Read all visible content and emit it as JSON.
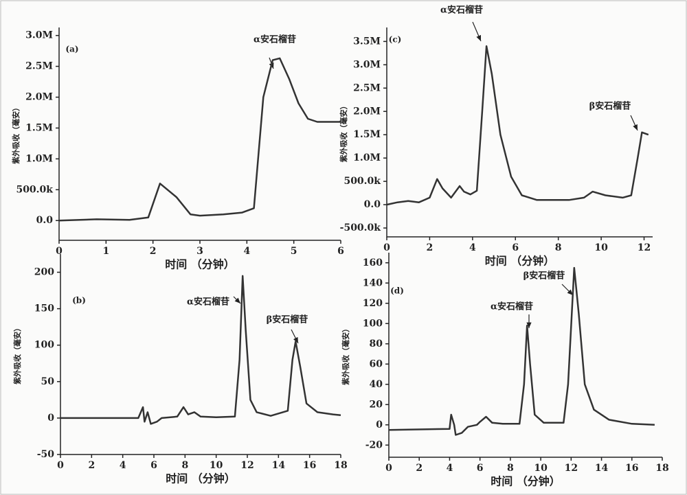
{
  "chart_data": [
    {
      "type": "line",
      "panel_label": "(a)",
      "x_label": "时间 （分钟）",
      "y_label": "紫外吸收（毫安）",
      "xlim": [
        0,
        6
      ],
      "xticks": [
        0,
        1,
        2,
        3,
        4,
        5,
        6
      ],
      "ylim": [
        -320000,
        3130000
      ],
      "yticks": [
        {
          "value": 0,
          "label": "0.0"
        },
        {
          "value": 500000,
          "label": "500.0k"
        },
        {
          "value": 1000000,
          "label": "1.0M"
        },
        {
          "value": 1500000,
          "label": "1.5M"
        },
        {
          "value": 2000000,
          "label": "2.0M"
        },
        {
          "value": 2500000,
          "label": "2.5M"
        },
        {
          "value": 3000000,
          "label": "3.0M"
        }
      ],
      "annotations": [
        {
          "text": "α安石榴苷"
        }
      ],
      "series": [
        {
          "color": "#333333",
          "x": [
            0,
            0.8,
            1.5,
            1.9,
            2.15,
            2.5,
            2.8,
            3.0,
            3.5,
            3.9,
            4.15,
            4.35,
            4.55,
            4.7,
            4.9,
            5.1,
            5.3,
            5.5,
            6.0
          ],
          "values": [
            0,
            20000,
            10000,
            50000,
            600000,
            380000,
            100000,
            80000,
            100000,
            130000,
            200000,
            2000000,
            2600000,
            2630000,
            2300000,
            1900000,
            1650000,
            1600000,
            1600000
          ]
        }
      ]
    },
    {
      "type": "line",
      "panel_label": "(c)",
      "x_label": "时间 （分钟）",
      "y_label": "紫外吸收（毫安）",
      "xlim": [
        0,
        12.4
      ],
      "xticks": [
        0,
        2,
        4,
        6,
        8,
        10,
        12
      ],
      "ylim": [
        -690000,
        3800000
      ],
      "yticks": [
        {
          "value": -500000,
          "label": "-500.0k"
        },
        {
          "value": 0,
          "label": "0.0"
        },
        {
          "value": 500000,
          "label": "500.0k"
        },
        {
          "value": 1000000,
          "label": "1.0M"
        },
        {
          "value": 1500000,
          "label": "1.5M"
        },
        {
          "value": 2000000,
          "label": "2.0M"
        },
        {
          "value": 2500000,
          "label": "2.5M"
        },
        {
          "value": 3000000,
          "label": "3.0M"
        },
        {
          "value": 3500000,
          "label": "3.5M"
        }
      ],
      "annotations": [
        {
          "text": "α安石榴苷"
        },
        {
          "text": "β安石榴苷"
        }
      ],
      "series": [
        {
          "color": "#333333",
          "x": [
            0,
            0.5,
            1,
            1.5,
            2.0,
            2.35,
            2.6,
            3.0,
            3.4,
            3.6,
            3.9,
            4.2,
            4.45,
            4.65,
            4.9,
            5.3,
            5.8,
            6.3,
            7,
            8.5,
            9.2,
            9.6,
            10.2,
            11,
            11.4,
            11.7,
            11.9,
            12.2
          ],
          "values": [
            0,
            50000,
            80000,
            50000,
            150000,
            550000,
            350000,
            150000,
            400000,
            280000,
            220000,
            300000,
            2000000,
            3400000,
            2800000,
            1500000,
            600000,
            200000,
            100000,
            100000,
            150000,
            280000,
            200000,
            150000,
            200000,
            1000000,
            1550000,
            1500000
          ]
        }
      ]
    },
    {
      "type": "line",
      "panel_label": "(b)",
      "x_label": "时间 （分钟）",
      "y_label": "紫外吸收（毫安）",
      "xlim": [
        0,
        18
      ],
      "xticks": [
        0,
        2,
        4,
        6,
        8,
        10,
        12,
        14,
        16,
        18
      ],
      "ylim": [
        -50,
        225
      ],
      "yticks": [
        -50,
        0,
        50,
        100,
        150,
        200
      ],
      "annotations": [
        {
          "text": "α安石榴苷"
        },
        {
          "text": "β安石榴苷"
        }
      ],
      "series": [
        {
          "color": "#333333",
          "x": [
            0,
            5.0,
            5.3,
            5.4,
            5.6,
            5.8,
            6.2,
            6.5,
            7.5,
            7.9,
            8.2,
            8.6,
            9,
            10,
            11.2,
            11.5,
            11.7,
            11.9,
            12.2,
            12.6,
            13.5,
            14.6,
            14.9,
            15.1,
            15.4,
            15.8,
            16.5,
            17.5,
            18
          ],
          "values": [
            0,
            0,
            15,
            -5,
            8,
            -8,
            -5,
            0,
            2,
            15,
            5,
            8,
            2,
            1,
            2,
            80,
            195,
            120,
            25,
            8,
            3,
            10,
            80,
            105,
            70,
            20,
            8,
            5,
            4
          ]
        }
      ]
    },
    {
      "type": "line",
      "panel_label": "(d)",
      "x_label": "时间 （分钟）",
      "y_label": "紫外吸收（毫安）",
      "xlim": [
        0,
        18
      ],
      "xticks": [
        0,
        2,
        4,
        6,
        8,
        10,
        12,
        14,
        16,
        18
      ],
      "ylim": [
        -32,
        170
      ],
      "yticks": [
        -20,
        0,
        20,
        40,
        60,
        80,
        100,
        120,
        140,
        160
      ],
      "annotations": [
        {
          "text": "α安石榴苷"
        },
        {
          "text": "β安石榴苷"
        }
      ],
      "series": [
        {
          "color": "#333333",
          "x": [
            0,
            4,
            4.1,
            4.3,
            4.4,
            4.8,
            5.2,
            5.8,
            6.0,
            6.4,
            6.8,
            7.5,
            8.6,
            8.9,
            9.1,
            9.3,
            9.6,
            10.2,
            11.5,
            11.8,
            12.2,
            12.5,
            12.9,
            13.5,
            14.5,
            16,
            17.5
          ],
          "values": [
            -5,
            -4,
            10,
            0,
            -10,
            -8,
            -2,
            0,
            3,
            8,
            2,
            1,
            1,
            40,
            98,
            60,
            10,
            2,
            2,
            40,
            155,
            110,
            40,
            15,
            5,
            1,
            0
          ]
        }
      ]
    }
  ]
}
